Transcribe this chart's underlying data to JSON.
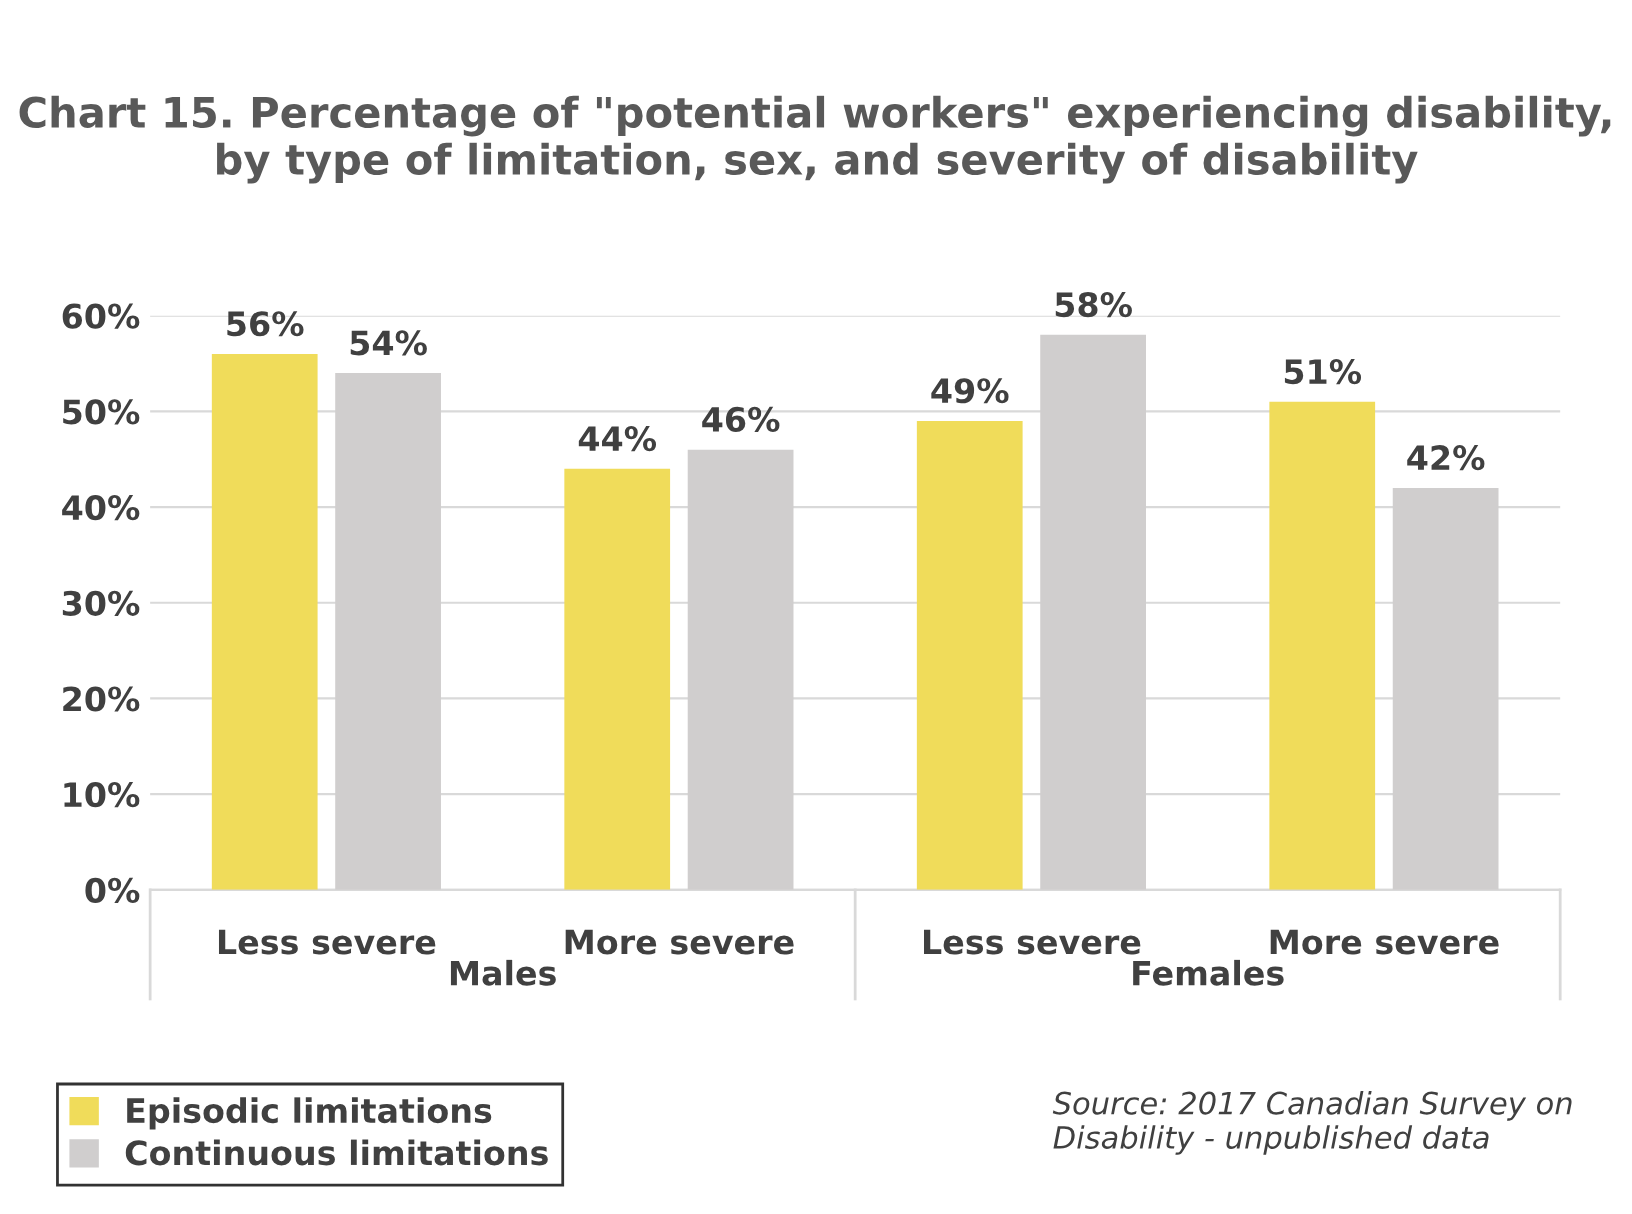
{
  "chart_data": {
    "type": "bar",
    "title": "Chart 15. Percentage of \"potential workers\" experiencing disability, by type of limitation, sex, and severity of disability",
    "categories": [
      "Less severe",
      "More severe",
      "Less severe",
      "More severe"
    ],
    "series": [
      {
        "name": "Episodic limitations",
        "color": "#f0dc5a",
        "values": [
          56,
          44,
          49,
          51
        ],
        "value_labels": [
          "56%",
          "44%",
          "49%",
          "51%"
        ]
      },
      {
        "name": "Continuous limitations",
        "color": "#d0cece",
        "values": [
          54,
          46,
          58,
          42
        ],
        "value_labels": [
          "54%",
          "46%",
          "58%",
          "42%"
        ]
      }
    ],
    "ylim": [
      0,
      60
    ],
    "yticks": [
      {
        "value": 0,
        "label": "0%"
      },
      {
        "value": 10,
        "label": "10%"
      },
      {
        "value": 20,
        "label": "20%"
      },
      {
        "value": 30,
        "label": "30%"
      },
      {
        "value": 40,
        "label": "40%"
      },
      {
        "value": 50,
        "label": "50%"
      },
      {
        "value": 60,
        "label": "60%"
      }
    ],
    "grid": "y",
    "legend": "bottom left",
    "annotations": [
      "Males",
      "Females",
      "Source: 2017 Canadian Survey on Disability - unpublished data"
    ]
  }
}
